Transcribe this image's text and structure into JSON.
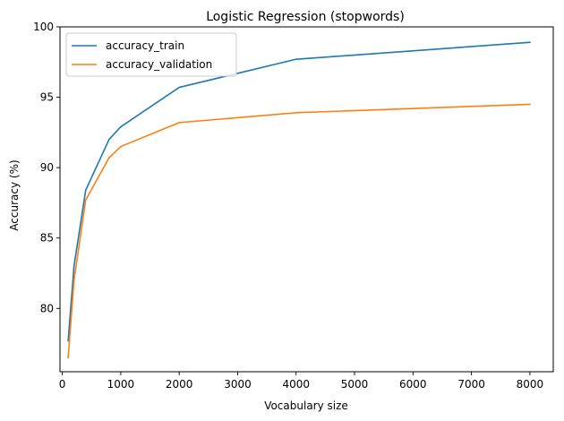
{
  "chart_data": {
    "type": "line",
    "title": "Logistic Regression (stopwords)",
    "xlabel": "Vocabulary size",
    "ylabel": "Accuracy (%)",
    "xlim": [
      -40,
      8400
    ],
    "ylim": [
      75.5,
      100
    ],
    "xticks": [
      0,
      1000,
      2000,
      3000,
      4000,
      5000,
      6000,
      7000,
      8000
    ],
    "yticks": [
      80,
      85,
      90,
      95,
      100
    ],
    "grid": false,
    "legend_position": "top-left",
    "series": [
      {
        "name": "accuracy_train",
        "color": "#1f77b4",
        "x": [
          100,
          200,
          400,
          800,
          1000,
          2000,
          4000,
          8000
        ],
        "values": [
          77.7,
          83.0,
          88.4,
          92.0,
          92.9,
          95.7,
          97.7,
          98.9
        ]
      },
      {
        "name": "accuracy_validation",
        "color": "#ff7f0e",
        "x": [
          100,
          200,
          400,
          800,
          1000,
          2000,
          4000,
          8000
        ],
        "values": [
          76.5,
          82.0,
          87.7,
          90.7,
          91.5,
          93.2,
          93.9,
          94.5
        ]
      }
    ]
  }
}
